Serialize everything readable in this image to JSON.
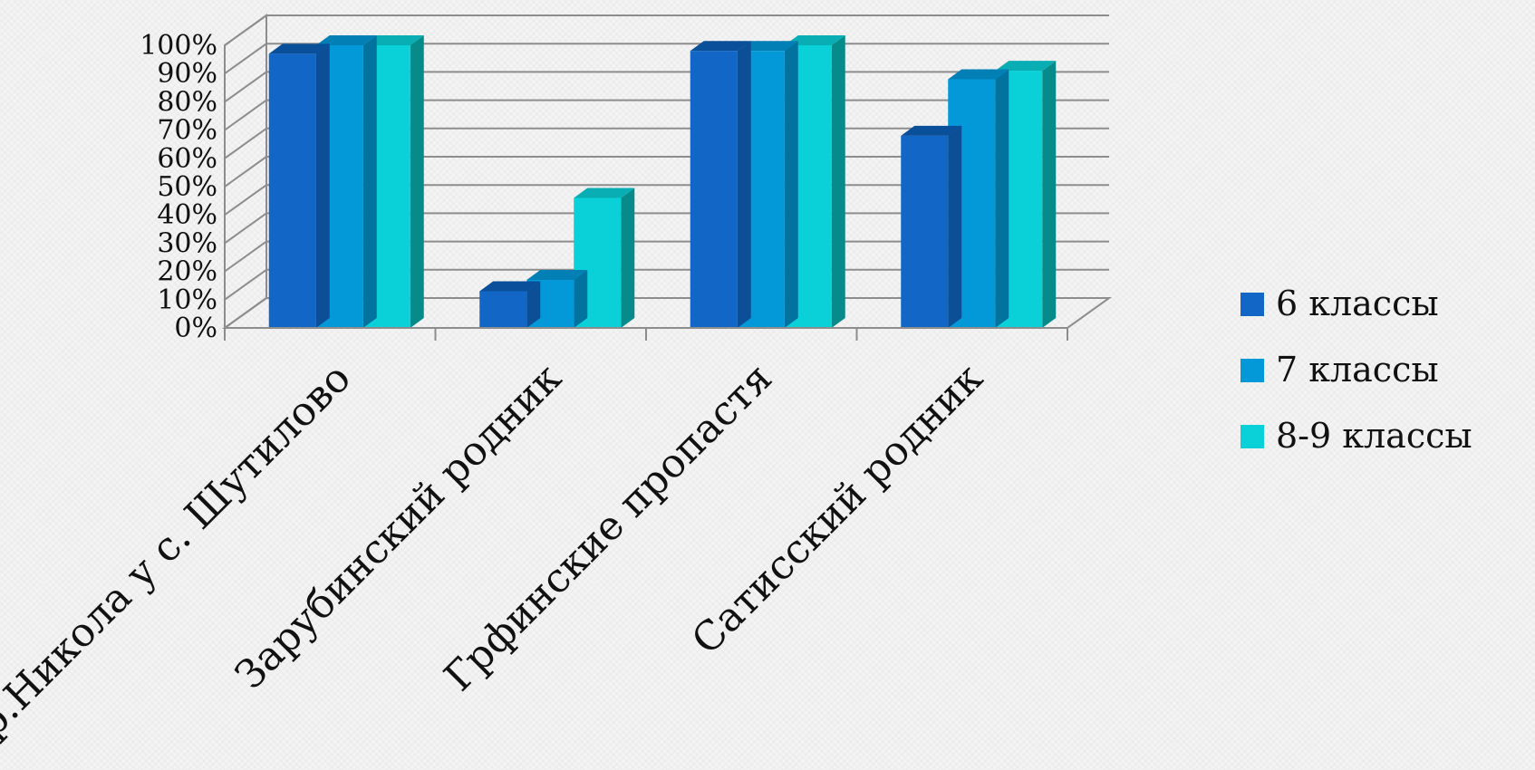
{
  "chart_data": {
    "type": "bar",
    "categories": [
      "р.Никола у с. Шутилово",
      "Зарубинский  родник",
      "Грфинские пропастя",
      "Сатисский родник"
    ],
    "series": [
      {
        "name": "6 классы",
        "values": [
          97,
          13,
          98,
          68
        ]
      },
      {
        "name": "7 классы",
        "values": [
          100,
          17,
          98,
          88
        ]
      },
      {
        "name": "8-9 классы",
        "values": [
          100,
          46,
          100,
          91
        ]
      }
    ],
    "ylim": [
      0,
      100
    ],
    "yticks": [
      "0%",
      "10%",
      "20%",
      "30%",
      "40%",
      "50%",
      "60%",
      "70%",
      "80%",
      "90%",
      "100%"
    ],
    "legend_position": "right",
    "grid": true,
    "colors": [
      "#1166c6",
      "#0399d8",
      "#0ad0d8"
    ],
    "top_colors": [
      "#0a4f9a",
      "#027fb4",
      "#09aeb4"
    ],
    "side_colors": [
      "#0c4f96",
      "#02739f",
      "#078a8a"
    ]
  }
}
